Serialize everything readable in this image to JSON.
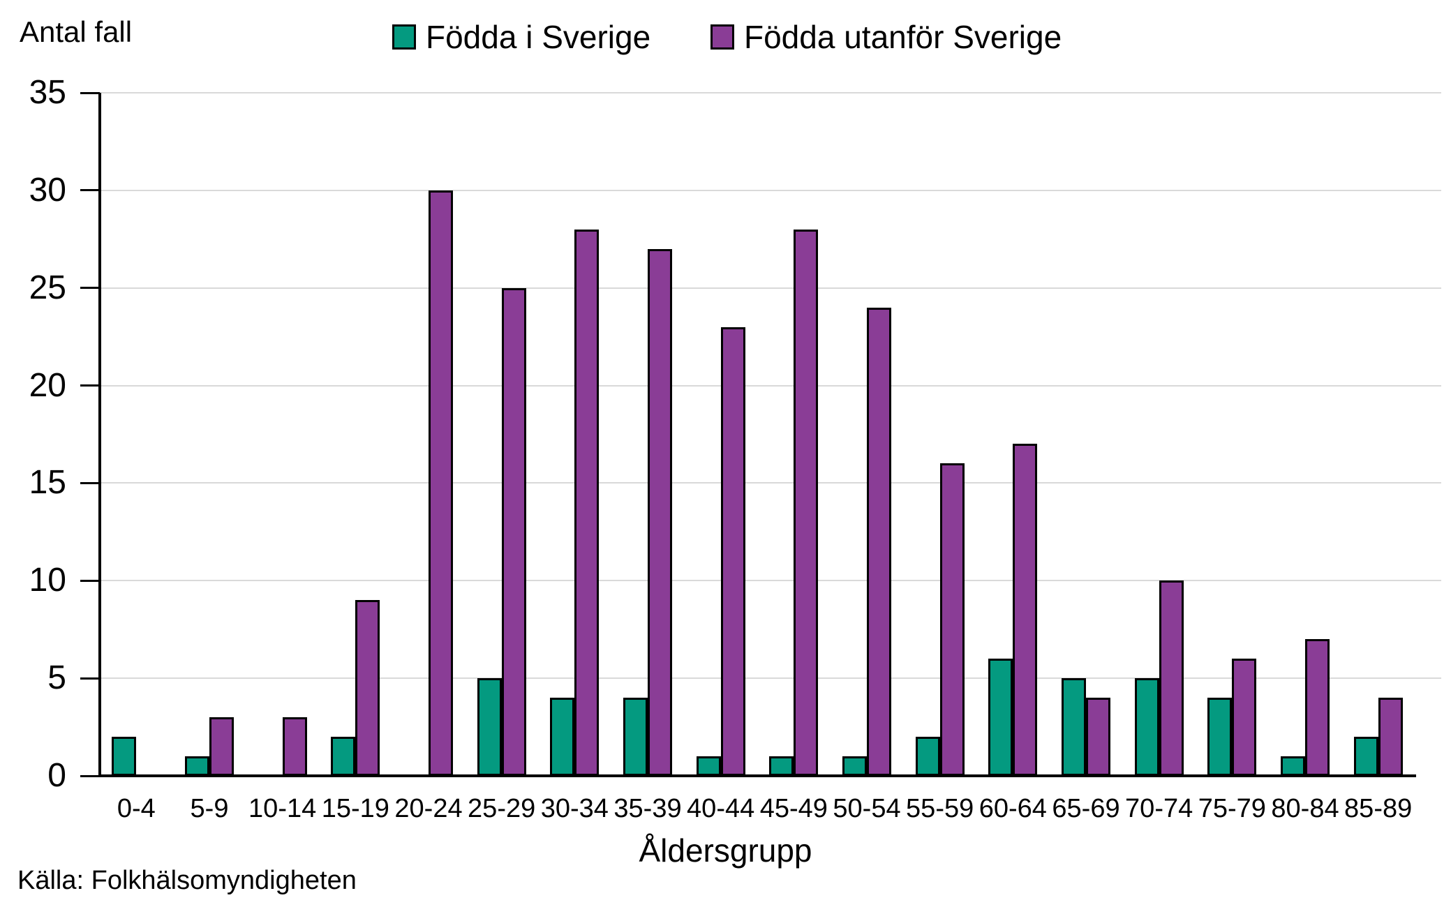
{
  "chart_data": {
    "type": "bar",
    "ylabel": "Antal fall",
    "xlabel": "Åldersgrupp",
    "source": "Källa: Folkhälsomyndigheten",
    "categories": [
      "0-4",
      "5-9",
      "10-14",
      "15-19",
      "20-24",
      "25-29",
      "30-34",
      "35-39",
      "40-44",
      "45-49",
      "50-54",
      "55-59",
      "60-64",
      "65-69",
      "70-74",
      "75-79",
      "80-84",
      "85-89"
    ],
    "series": [
      {
        "name": "Födda i Sverige",
        "color": "#049A80",
        "values": [
          2,
          1,
          0,
          2,
          0,
          5,
          4,
          4,
          1,
          1,
          1,
          2,
          6,
          5,
          5,
          4,
          1,
          2
        ]
      },
      {
        "name": "Födda utanför Sverige",
        "color": "#8A3D96",
        "values": [
          0,
          3,
          3,
          9,
          30,
          25,
          28,
          27,
          23,
          28,
          24,
          16,
          17,
          4,
          10,
          6,
          7,
          4
        ]
      }
    ],
    "ylim": [
      0,
      35
    ],
    "yticks": [
      0,
      5,
      10,
      15,
      20,
      25,
      30,
      35
    ],
    "grid": "horizontal",
    "legend_position": "top",
    "bar_outline_color": "#000000",
    "gridline_color": "#d9d9d9"
  }
}
